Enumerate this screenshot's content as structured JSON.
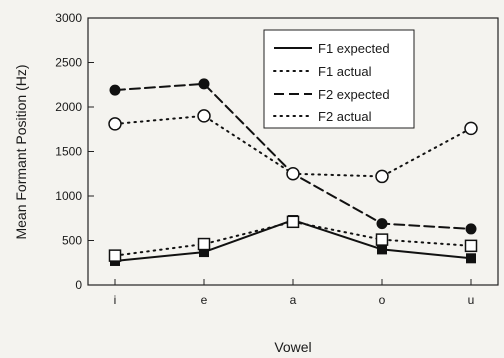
{
  "chart_data": {
    "type": "line",
    "title": "",
    "xlabel": "Vowel",
    "ylabel": "Mean Formant Position (Hz)",
    "categories": [
      "i",
      "e",
      "a",
      "o",
      "u"
    ],
    "ylim": [
      0,
      3000
    ],
    "yticks": [
      0,
      500,
      1000,
      1500,
      2000,
      2500,
      3000
    ],
    "grid": false,
    "legend_position": "top-right",
    "series": [
      {
        "name": "F1 expected",
        "values": [
          270,
          370,
          730,
          400,
          300
        ],
        "line": "solid",
        "marker": "filled-square"
      },
      {
        "name": "F1 actual",
        "values": [
          330,
          460,
          710,
          510,
          440
        ],
        "line": "dotted",
        "marker": "open-square"
      },
      {
        "name": "F2 expected",
        "values": [
          2190,
          2260,
          1250,
          690,
          630
        ],
        "line": "dashed",
        "marker": "filled-circle"
      },
      {
        "name": "F2 actual",
        "values": [
          1810,
          1900,
          1250,
          1220,
          1760
        ],
        "line": "dotted",
        "marker": "open-circle"
      }
    ]
  }
}
